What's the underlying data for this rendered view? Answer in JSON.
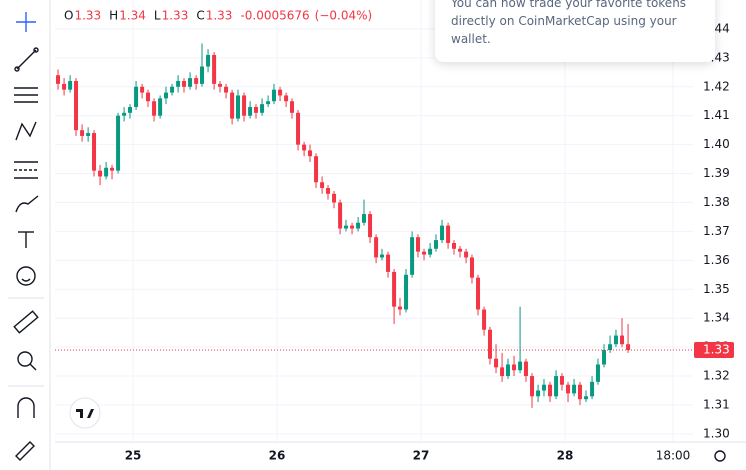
{
  "chart_data": {
    "type": "candlestick",
    "up_color": "#089981",
    "down_color": "#f23645",
    "grid": true,
    "legend": {
      "items": [
        {
          "key": "O",
          "value": "1.33"
        },
        {
          "key": "H",
          "value": "1.34"
        },
        {
          "key": "L",
          "value": "1.33"
        },
        {
          "key": "C",
          "value": "1.33"
        }
      ],
      "change": "-0.0005676",
      "change_pct": "(−0.04%)"
    },
    "last_price": {
      "value": 1.329,
      "label": "1.33"
    },
    "xlim": [
      24.458,
      28.889
    ],
    "xticks": [
      25,
      26,
      27,
      28,
      {
        "value": 28.75,
        "label": "18:00"
      }
    ],
    "ylim": [
      1.2972,
      1.45
    ],
    "yticks": [
      {
        "value": 1.3,
        "label": "1.30"
      },
      {
        "value": 1.31,
        "label": "1.31"
      },
      {
        "value": 1.32,
        "label": "1.32"
      },
      {
        "value": 1.33,
        "label": "1.33"
      },
      {
        "value": 1.34,
        "label": "1.34"
      },
      {
        "value": 1.35,
        "label": "1.35"
      },
      {
        "value": 1.36,
        "label": "1.36"
      },
      {
        "value": 1.37,
        "label": "1.37"
      },
      {
        "value": 1.38,
        "label": "1.38"
      },
      {
        "value": 1.39,
        "label": "1.39"
      },
      {
        "value": 1.4,
        "label": "1.40"
      },
      {
        "value": 1.41,
        "label": "1.41"
      },
      {
        "value": 1.42,
        "label": "1.42"
      },
      {
        "value": 1.43,
        "label": "1.43"
      },
      {
        "value": 1.44,
        "label": "1.44"
      }
    ],
    "x": [
      24.479,
      24.521,
      24.563,
      24.604,
      24.646,
      24.688,
      24.729,
      24.771,
      24.813,
      24.854,
      24.896,
      24.938,
      24.979,
      25.021,
      25.063,
      25.104,
      25.146,
      25.188,
      25.229,
      25.271,
      25.313,
      25.354,
      25.396,
      25.438,
      25.479,
      25.521,
      25.563,
      25.604,
      25.646,
      25.688,
      25.729,
      25.771,
      25.813,
      25.854,
      25.896,
      25.938,
      25.979,
      26.021,
      26.063,
      26.104,
      26.146,
      26.188,
      26.229,
      26.271,
      26.313,
      26.354,
      26.396,
      26.438,
      26.479,
      26.521,
      26.563,
      26.604,
      26.646,
      26.688,
      26.729,
      26.771,
      26.813,
      26.854,
      26.896,
      26.938,
      26.979,
      27.021,
      27.063,
      27.104,
      27.146,
      27.188,
      27.229,
      27.271,
      27.313,
      27.354,
      27.396,
      27.438,
      27.479,
      27.521,
      27.563,
      27.604,
      27.646,
      27.688,
      27.729,
      27.771,
      27.813,
      27.854,
      27.896,
      27.938,
      27.979,
      28.021,
      28.063,
      28.104,
      28.146,
      28.188,
      28.229,
      28.271,
      28.313,
      28.354,
      28.396,
      28.438
    ],
    "ohlc": [
      [
        1.424,
        1.426,
        1.419,
        1.421
      ],
      [
        1.421,
        1.423,
        1.417,
        1.419
      ],
      [
        1.419,
        1.424,
        1.418,
        1.422
      ],
      [
        1.422,
        1.423,
        1.403,
        1.405
      ],
      [
        1.405,
        1.407,
        1.401,
        1.403
      ],
      [
        1.403,
        1.406,
        1.401,
        1.404
      ],
      [
        1.404,
        1.405,
        1.389,
        1.391
      ],
      [
        1.391,
        1.393,
        1.386,
        1.389
      ],
      [
        1.389,
        1.394,
        1.388,
        1.392
      ],
      [
        1.392,
        1.393,
        1.388,
        1.391
      ],
      [
        1.391,
        1.411,
        1.39,
        1.41
      ],
      [
        1.41,
        1.413,
        1.408,
        1.411
      ],
      [
        1.411,
        1.414,
        1.409,
        1.413
      ],
      [
        1.413,
        1.422,
        1.412,
        1.42
      ],
      [
        1.42,
        1.421,
        1.416,
        1.418
      ],
      [
        1.418,
        1.419,
        1.413,
        1.415
      ],
      [
        1.415,
        1.416,
        1.408,
        1.41
      ],
      [
        1.41,
        1.417,
        1.409,
        1.416
      ],
      [
        1.416,
        1.42,
        1.414,
        1.418
      ],
      [
        1.418,
        1.421,
        1.417,
        1.42
      ],
      [
        1.42,
        1.424,
        1.418,
        1.422
      ],
      [
        1.422,
        1.423,
        1.418,
        1.42
      ],
      [
        1.42,
        1.425,
        1.419,
        1.423
      ],
      [
        1.423,
        1.424,
        1.419,
        1.421
      ],
      [
        1.421,
        1.435,
        1.42,
        1.427
      ],
      [
        1.427,
        1.433,
        1.425,
        1.431
      ],
      [
        1.431,
        1.432,
        1.419,
        1.421
      ],
      [
        1.421,
        1.422,
        1.418,
        1.42
      ],
      [
        1.42,
        1.421,
        1.416,
        1.418
      ],
      [
        1.418,
        1.419,
        1.407,
        1.409
      ],
      [
        1.409,
        1.419,
        1.408,
        1.417
      ],
      [
        1.417,
        1.418,
        1.408,
        1.41
      ],
      [
        1.41,
        1.415,
        1.409,
        1.413
      ],
      [
        1.413,
        1.414,
        1.409,
        1.411
      ],
      [
        1.411,
        1.416,
        1.41,
        1.414
      ],
      [
        1.414,
        1.417,
        1.413,
        1.415
      ],
      [
        1.415,
        1.421,
        1.414,
        1.419
      ],
      [
        1.419,
        1.42,
        1.415,
        1.417
      ],
      [
        1.417,
        1.418,
        1.413,
        1.415
      ],
      [
        1.415,
        1.416,
        1.409,
        1.411
      ],
      [
        1.411,
        1.412,
        1.398,
        1.4
      ],
      [
        1.4,
        1.401,
        1.396,
        1.398
      ],
      [
        1.398,
        1.4,
        1.394,
        1.396
      ],
      [
        1.396,
        1.397,
        1.385,
        1.387
      ],
      [
        1.387,
        1.389,
        1.383,
        1.385
      ],
      [
        1.385,
        1.386,
        1.381,
        1.383
      ],
      [
        1.383,
        1.384,
        1.378,
        1.38
      ],
      [
        1.38,
        1.381,
        1.369,
        1.371
      ],
      [
        1.371,
        1.374,
        1.37,
        1.372
      ],
      [
        1.372,
        1.373,
        1.369,
        1.371
      ],
      [
        1.371,
        1.375,
        1.37,
        1.373
      ],
      [
        1.373,
        1.381,
        1.372,
        1.376
      ],
      [
        1.376,
        1.377,
        1.366,
        1.368
      ],
      [
        1.368,
        1.369,
        1.359,
        1.361
      ],
      [
        1.361,
        1.364,
        1.36,
        1.362
      ],
      [
        1.362,
        1.363,
        1.354,
        1.356
      ],
      [
        1.356,
        1.357,
        1.338,
        1.344
      ],
      [
        1.344,
        1.347,
        1.341,
        1.343
      ],
      [
        1.343,
        1.357,
        1.342,
        1.355
      ],
      [
        1.355,
        1.37,
        1.354,
        1.368
      ],
      [
        1.368,
        1.369,
        1.361,
        1.363
      ],
      [
        1.363,
        1.364,
        1.36,
        1.362
      ],
      [
        1.362,
        1.366,
        1.361,
        1.364
      ],
      [
        1.364,
        1.369,
        1.363,
        1.367
      ],
      [
        1.367,
        1.374,
        1.366,
        1.372
      ],
      [
        1.372,
        1.373,
        1.364,
        1.366
      ],
      [
        1.366,
        1.367,
        1.362,
        1.364
      ],
      [
        1.364,
        1.365,
        1.361,
        1.363
      ],
      [
        1.363,
        1.364,
        1.359,
        1.361
      ],
      [
        1.361,
        1.362,
        1.352,
        1.354
      ],
      [
        1.354,
        1.355,
        1.341,
        1.343
      ],
      [
        1.343,
        1.344,
        1.334,
        1.336
      ],
      [
        1.336,
        1.337,
        1.324,
        1.326
      ],
      [
        1.326,
        1.331,
        1.321,
        1.323
      ],
      [
        1.323,
        1.328,
        1.318,
        1.32
      ],
      [
        1.32,
        1.326,
        1.319,
        1.324
      ],
      [
        1.324,
        1.327,
        1.32,
        1.322
      ],
      [
        1.322,
        1.344,
        1.321,
        1.325
      ],
      [
        1.325,
        1.326,
        1.318,
        1.32
      ],
      [
        1.32,
        1.321,
        1.309,
        1.313
      ],
      [
        1.313,
        1.317,
        1.311,
        1.315
      ],
      [
        1.315,
        1.319,
        1.313,
        1.317
      ],
      [
        1.317,
        1.318,
        1.311,
        1.313
      ],
      [
        1.313,
        1.322,
        1.312,
        1.32
      ],
      [
        1.32,
        1.321,
        1.315,
        1.317
      ],
      [
        1.317,
        1.318,
        1.311,
        1.314
      ],
      [
        1.314,
        1.319,
        1.313,
        1.317
      ],
      [
        1.317,
        1.318,
        1.31,
        1.312
      ],
      [
        1.312,
        1.315,
        1.311,
        1.313
      ],
      [
        1.313,
        1.32,
        1.312,
        1.318
      ],
      [
        1.318,
        1.326,
        1.317,
        1.324
      ],
      [
        1.324,
        1.331,
        1.323,
        1.329
      ],
      [
        1.329,
        1.334,
        1.328,
        1.331
      ],
      [
        1.331,
        1.336,
        1.33,
        1.334
      ],
      [
        1.334,
        1.34,
        1.33,
        1.331
      ],
      [
        1.331,
        1.338,
        1.328,
        1.329
      ]
    ]
  },
  "popup": {
    "lines": [
      "You can now trade your favorite tokens",
      "directly on CoinMarketCap using your",
      "wallet."
    ]
  }
}
